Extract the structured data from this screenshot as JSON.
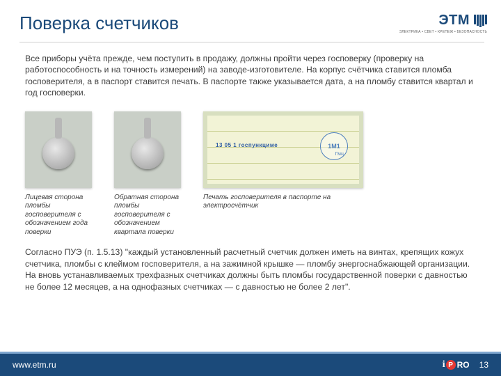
{
  "header": {
    "title": "Поверка счетчиков",
    "logo_text": "ЭТМ",
    "logo_sub": "ЭЛЕКТРИКА • СВЕТ • КРЕПЕЖ • БЕЗОПАСНОСТЬ"
  },
  "body": {
    "p1": "Все приборы учёта прежде, чем поступить в продажу, должны пройти через госповерку (проверку на работоспособность и на точность измерений) на заводе-изготовителе. На корпус счётчика ставится пломба госповерителя, а в паспорт ставится печать. В паспорте также указывается дата, а на пломбу ставится квартал и год госповерки.",
    "figs": [
      {
        "caption": "Лицевая сторона пломбы госповерителя с обозначением года поверки"
      },
      {
        "caption": "Обратная сторона пломбы госповерителя с обозначением квартала поверки"
      },
      {
        "caption": "Печать госповерителя в паспорте на электросчётчик",
        "stamp_main": "1М1",
        "stamp_sub": "Гмц",
        "pass_text": "13 05 1 госпункциме"
      }
    ],
    "p2": "Согласно ПУЭ (п. 1.5.13) \"каждый установленный расчетный счетчик должен иметь на винтах, крепящих кожух счетчика, пломбы с клеймом госповерителя, а на зажимной крышке — пломбу энергоснабжающей организации. На вновь устанавливаемых трехфазных счетчиках должны быть пломбы государственной поверки с давностью не более 12 месяцев, а на однофазных счетчиках — с давностью не более 2 лет\"."
  },
  "footer": {
    "site": "www.etm.ru",
    "page": "13"
  },
  "colors": {
    "brand": "#1b4a7a",
    "footer_accent": "#7fa7d0",
    "red": "#e53935"
  }
}
